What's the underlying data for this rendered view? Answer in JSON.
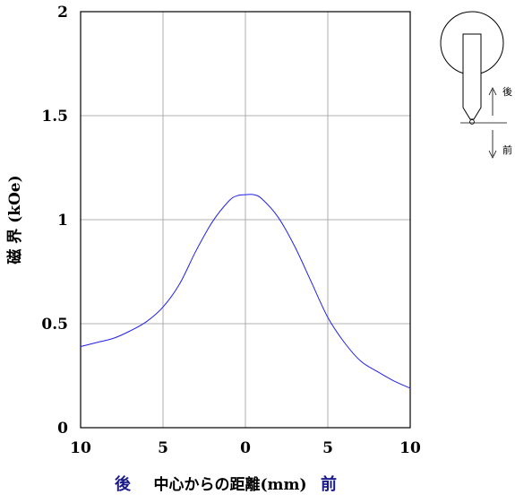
{
  "chart_data": {
    "type": "line",
    "ylabel": "磁 界 (kOe)",
    "xlabel": {
      "left": "後",
      "center": "中心からの距離(mm)",
      "right": "前"
    },
    "x_ticks": [
      "10",
      "5",
      "0",
      "5",
      "10"
    ],
    "y_ticks": [
      "0",
      "0.5",
      "1",
      "1.5",
      "2"
    ],
    "xlim": [
      -10,
      10
    ],
    "ylim": [
      0,
      2
    ],
    "grid": true,
    "series": [
      {
        "color": "#2020ee",
        "x": [
          -10,
          -9,
          -8,
          -7,
          -6,
          -5,
          -4,
          -3,
          -2,
          -1,
          -0.5,
          0,
          0.5,
          1,
          2,
          3,
          4,
          5,
          6,
          7,
          8,
          9,
          10
        ],
        "y": [
          0.39,
          0.41,
          0.43,
          0.465,
          0.51,
          0.58,
          0.69,
          0.85,
          0.99,
          1.09,
          1.115,
          1.12,
          1.12,
          1.1,
          1.01,
          0.87,
          0.7,
          0.53,
          0.41,
          0.32,
          0.27,
          0.225,
          0.19
        ]
      }
    ],
    "inset": {
      "label_back": "後",
      "label_front": "前"
    }
  },
  "colors": {
    "series": "#2020ee",
    "xlabel_accent": "#1a1a8c",
    "grid": "#999999",
    "axis": "#000000"
  }
}
